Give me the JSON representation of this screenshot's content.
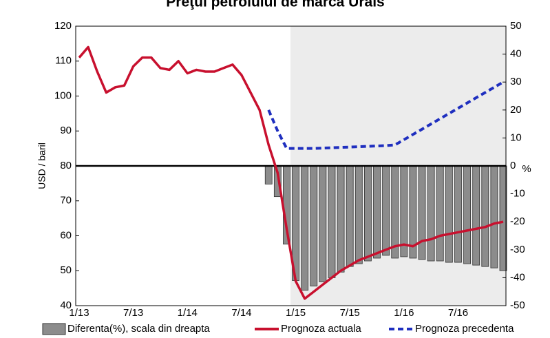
{
  "chart_data": {
    "type": "combo",
    "title": "Preţul petrolului de marca Urals",
    "y_label": "USD / baril",
    "y2_label": "%",
    "categories": [
      "1/13",
      null,
      null,
      null,
      null,
      null,
      "7/13",
      null,
      null,
      null,
      null,
      null,
      "1/14",
      null,
      null,
      null,
      null,
      null,
      "7/14",
      null,
      null,
      null,
      null,
      null,
      "1/15",
      null,
      null,
      null,
      null,
      null,
      "7/15",
      null,
      null,
      null,
      null,
      null,
      "1/16",
      null,
      null,
      null,
      null,
      null,
      "7/16",
      null,
      null,
      null,
      null,
      null
    ],
    "ylim": [
      40,
      120
    ],
    "yticks": [
      40,
      50,
      60,
      70,
      80,
      90,
      100,
      110,
      120
    ],
    "y2lim": [
      -50,
      50
    ],
    "y2ticks": [
      -50,
      -40,
      -30,
      -20,
      -10,
      0,
      10,
      20,
      30,
      40,
      50
    ],
    "series": [
      {
        "name": "Diferenta(%), scala din dreapta",
        "type": "bar",
        "axis": "y2",
        "color": "#8c8c8c",
        "values": [
          null,
          null,
          null,
          null,
          null,
          null,
          null,
          null,
          null,
          null,
          null,
          null,
          null,
          null,
          null,
          null,
          null,
          null,
          null,
          null,
          null,
          -6.5,
          -11,
          -28,
          -41,
          -44.5,
          -43,
          -41.5,
          -40,
          -38,
          -36,
          -35,
          -34,
          -33,
          -32,
          -33,
          -32.5,
          -33,
          -33.5,
          -34,
          -34,
          -34.5,
          -34.5,
          -35,
          -35.5,
          -36,
          -36.5,
          -37.5
        ]
      },
      {
        "name": "Prognoza actuala",
        "type": "line",
        "color": "#c8102e",
        "values": [
          111,
          114,
          107,
          101,
          102.5,
          103,
          108.5,
          111,
          111,
          108,
          107.5,
          110,
          106.5,
          107.5,
          107,
          107,
          108,
          109,
          106,
          101,
          96,
          86,
          78,
          62,
          47,
          42,
          44,
          46,
          48,
          50,
          51.5,
          53,
          54,
          55,
          56,
          57,
          57.5,
          57,
          58.5,
          59,
          60,
          60.5,
          61,
          61.5,
          62,
          62.5,
          63.5,
          64
        ]
      },
      {
        "name": "Prognoza precedenta",
        "type": "dashed-line",
        "color": "#1f2fbf",
        "values": [
          null,
          null,
          null,
          null,
          null,
          null,
          null,
          null,
          null,
          null,
          null,
          null,
          null,
          null,
          null,
          null,
          null,
          null,
          null,
          null,
          null,
          96,
          90,
          85,
          85,
          85,
          85,
          85.1,
          85.2,
          85.3,
          85.4,
          85.5,
          85.6,
          85.7,
          85.8,
          86,
          87.5,
          89,
          90.5,
          92,
          93.5,
          95,
          96.5,
          98,
          99.5,
          101,
          102.5,
          104
        ]
      }
    ]
  }
}
